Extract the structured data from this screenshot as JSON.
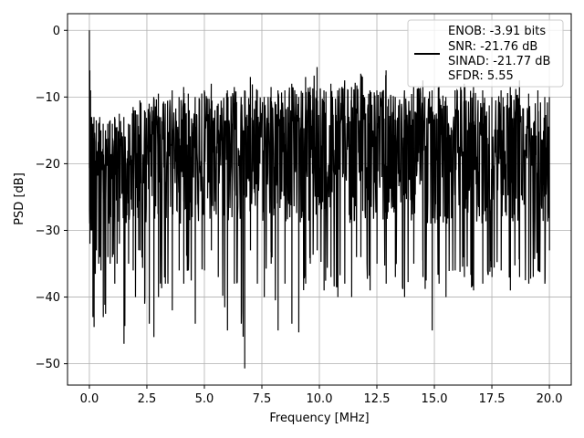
{
  "chart_data": {
    "type": "line",
    "xlabel": "Frequency [MHz]",
    "ylabel": "PSD [dB]",
    "xlim": [
      -0.95,
      20.95
    ],
    "ylim": [
      -53.2,
      2.5
    ],
    "xticks": [
      0.0,
      2.5,
      5.0,
      7.5,
      10.0,
      12.5,
      15.0,
      17.5,
      20.0
    ],
    "xtick_labels": [
      "0.0",
      "2.5",
      "5.0",
      "7.5",
      "10.0",
      "12.5",
      "15.0",
      "17.5",
      "20.0"
    ],
    "yticks": [
      0,
      -10,
      -20,
      -30,
      -40,
      -50
    ],
    "ytick_labels": [
      "0",
      "−10",
      "−20",
      "−30",
      "−40",
      "−50"
    ],
    "grid": true,
    "legend_placement": "top-right",
    "legend_lines": [
      "ENOB: -3.91 bits",
      "SNR: -21.76 dB",
      "SINAD: -21.77 dB",
      "SFDR: 5.55"
    ],
    "series": [
      {
        "color": "#000000",
        "description": "Noisy PSD with peak near 0 dB at 0 MHz, band mostly between -10 and -30 dB",
        "x": [
          0.0,
          0.02,
          0.05,
          0.1,
          0.15,
          0.2,
          0.3,
          0.4,
          0.45,
          0.5,
          0.6,
          0.7,
          0.8,
          0.9,
          1.0,
          1.1,
          1.2,
          1.3,
          1.5,
          1.7,
          1.9,
          2.0,
          2.2,
          2.4,
          2.6,
          2.8,
          3.0,
          3.3,
          3.6,
          3.9,
          4.1,
          4.3,
          4.6,
          5.0,
          5.3,
          5.6,
          6.0,
          6.3,
          6.6,
          6.75,
          7.0,
          7.3,
          7.6,
          7.9,
          8.2,
          8.5,
          8.8,
          9.1,
          9.4,
          9.6,
          9.9,
          10.2,
          10.5,
          10.8,
          11.1,
          11.4,
          11.8,
          12.2,
          12.5,
          12.9,
          13.3,
          13.7,
          14.1,
          14.5,
          14.9,
          15.2,
          15.5,
          15.9,
          16.3,
          16.7,
          17.1,
          17.5,
          17.9,
          18.3,
          18.7,
          19.1,
          19.5,
          19.8,
          20.0
        ],
        "upper": [
          0,
          -6,
          -9,
          -13,
          -14,
          -13,
          -13.5,
          -14,
          -13,
          -15,
          -14,
          -15,
          -14,
          -13.5,
          -14,
          -13,
          -14.5,
          -12.5,
          -13,
          -14,
          -11.5,
          -12,
          -10.5,
          -12,
          -11,
          -10,
          -9.5,
          -11,
          -9,
          -10,
          -8.5,
          -9.5,
          -10,
          -9,
          -8,
          -11,
          -9,
          -8.5,
          -10,
          -9,
          -7,
          -9,
          -10,
          -8.5,
          -9,
          -9,
          -8,
          -10,
          -7,
          -8.5,
          -5.5,
          -9,
          -8,
          -9,
          -7.5,
          -8.5,
          -6.5,
          -9,
          -9,
          -6,
          -10,
          -9,
          -8.5,
          -7.5,
          -9,
          -8.5,
          -10,
          -9,
          -8,
          -8.5,
          -9,
          -10,
          -9,
          -8.5,
          -7.5,
          -9.5,
          -9,
          -10,
          -10
        ],
        "lower": [
          -27,
          -32,
          -30,
          -30,
          -43,
          -44.5,
          -33,
          -35,
          -34,
          -36,
          -43,
          -42.5,
          -34,
          -35,
          -34,
          -38,
          -35,
          -32,
          -47,
          -35,
          -36,
          -40,
          -33,
          -41,
          -44,
          -46,
          -40,
          -38,
          -42,
          -36,
          -38,
          -36,
          -44,
          -36,
          -33,
          -37,
          -45,
          -38,
          -44,
          -50.7,
          -33,
          -38,
          -40,
          -35,
          -45,
          -38,
          -44,
          -45.3,
          -38,
          -35,
          -33,
          -39,
          -37,
          -40,
          -38,
          -40,
          -34,
          -39,
          -35,
          -38,
          -37,
          -40,
          -35,
          -37,
          -45,
          -38,
          -40,
          -36,
          -37,
          -39,
          -38,
          -37,
          -36,
          -39,
          -37,
          -38,
          -36,
          -38,
          -33
        ]
      }
    ]
  }
}
